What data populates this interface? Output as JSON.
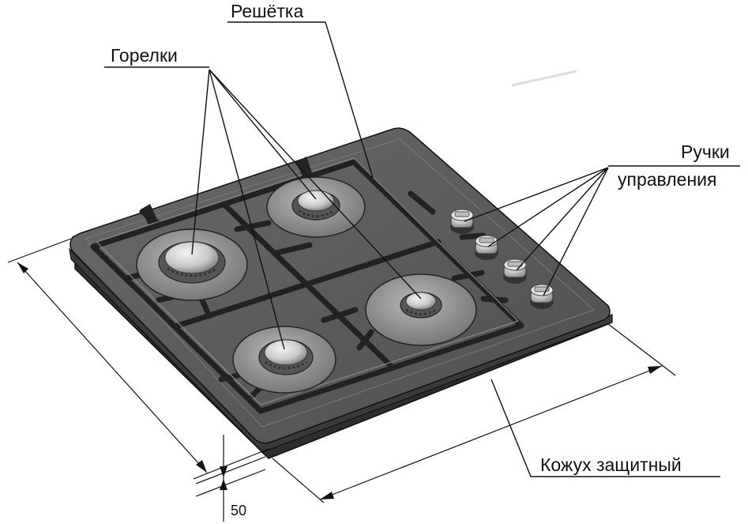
{
  "labels": {
    "grate": "Решётка",
    "burners": "Горелки",
    "knobs_line1": "Ручки",
    "knobs_line2": "управления",
    "cover": "Кожух защитный",
    "height_value": "50"
  },
  "colors": {
    "hob_top": "#5c5c5c",
    "hob_edge": "#3a3a3a",
    "burner_ring": "#9c9c9c",
    "burner_cap": "#d6d6d6",
    "grate": "#222222",
    "line": "#111111"
  }
}
